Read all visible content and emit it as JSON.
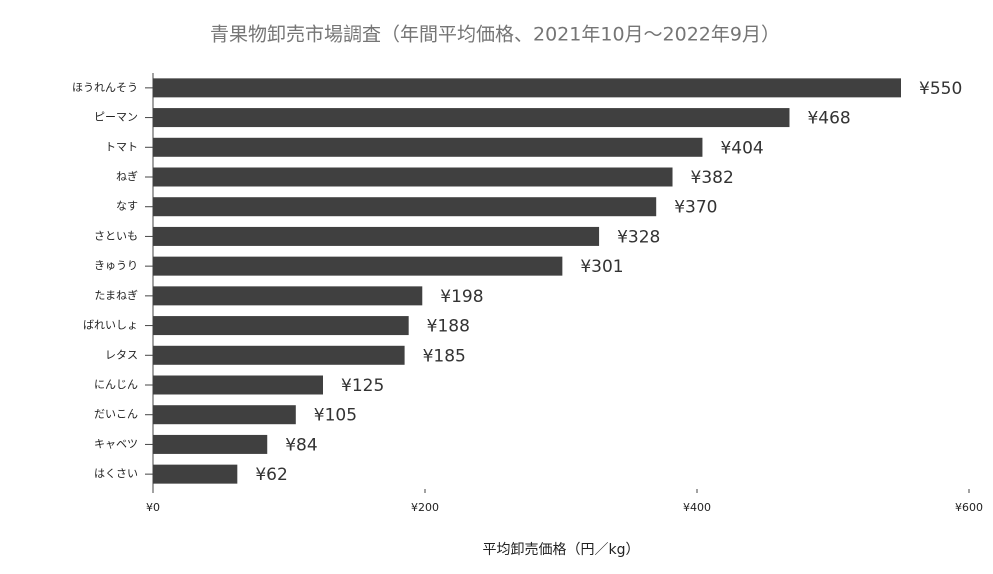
{
  "chart_data": {
    "type": "bar",
    "orientation": "horizontal",
    "title": "青果物卸売市場調査（年間平均価格、2021年10月〜2022年9月）",
    "x_label": "平均卸売価格（円／kg）",
    "categories": [
      "ほうれんそう",
      "ピーマン",
      "トマト",
      "ねぎ",
      "なす",
      "さといも",
      "きゅうり",
      "たまねぎ",
      "ばれいしょ",
      "レタス",
      "にんじん",
      "だいこん",
      "キャベツ",
      "はくさい"
    ],
    "values": [
      550,
      468,
      404,
      382,
      370,
      328,
      301,
      198,
      188,
      185,
      125,
      105,
      84,
      62
    ],
    "value_labels": [
      "¥550",
      "¥468",
      "¥404",
      "¥382",
      "¥370",
      "¥328",
      "¥301",
      "¥198",
      "¥188",
      "¥185",
      "¥125",
      "¥105",
      "¥84",
      "¥62"
    ],
    "color": "#404040",
    "xlim": [
      0,
      600
    ],
    "xticks": [
      {
        "value": 0,
        "label": "¥0"
      },
      {
        "value": 200,
        "label": "¥200"
      },
      {
        "value": 400,
        "label": "¥400"
      },
      {
        "value": 600,
        "label": "¥600"
      }
    ],
    "grid": false
  }
}
